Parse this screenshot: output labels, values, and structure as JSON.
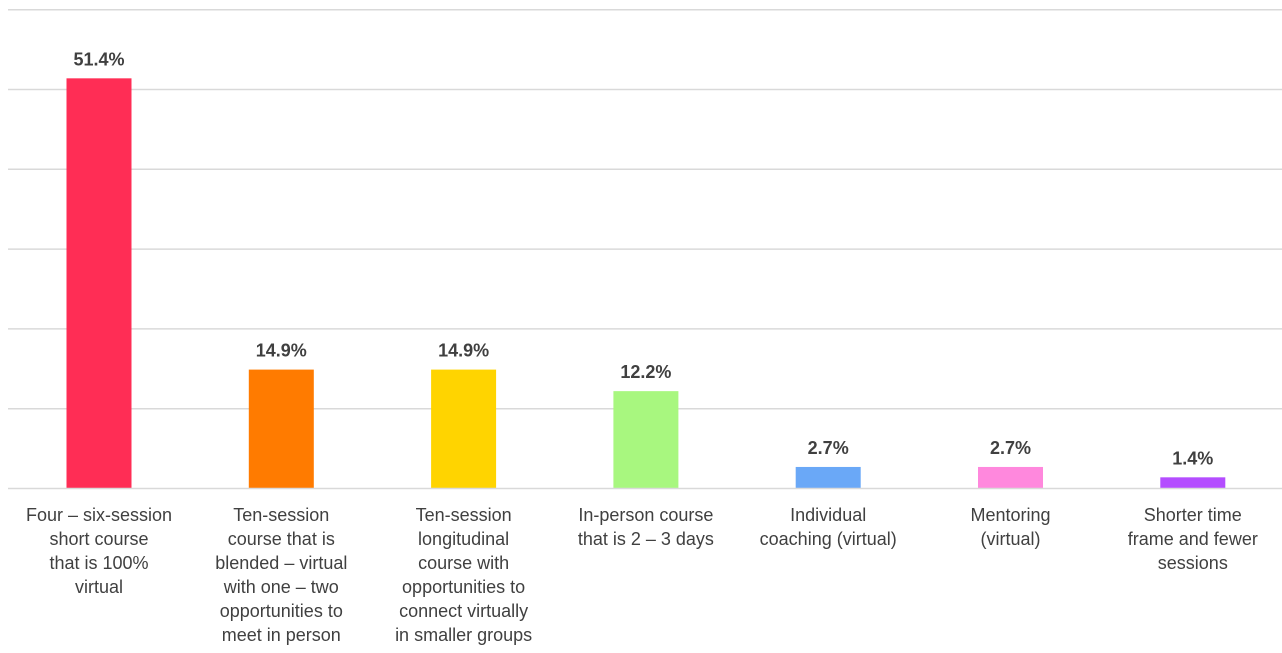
{
  "chart_data": {
    "type": "bar",
    "categories": [
      [
        "Four – six-session",
        "short course",
        "that is 100%",
        "virtual"
      ],
      [
        "Ten-session",
        "course that is",
        "blended – virtual",
        "with one – two",
        "opportunities to",
        "meet in person"
      ],
      [
        "Ten-session",
        "longitudinal",
        "course with",
        "opportunities to",
        "connect virtually",
        "in smaller groups"
      ],
      [
        "In-person course",
        "that is 2 – 3 days"
      ],
      [
        "Individual",
        "coaching (virtual)"
      ],
      [
        "Mentoring",
        "(virtual)"
      ],
      [
        "Shorter time",
        "frame and fewer",
        "sessions"
      ]
    ],
    "values": [
      51.4,
      14.9,
      14.9,
      12.2,
      2.7,
      2.7,
      1.4
    ],
    "value_labels": [
      "51.4%",
      "14.9%",
      "14.9%",
      "12.2%",
      "2.7%",
      "2.7%",
      "1.4%"
    ],
    "colors": [
      "#ff2d55",
      "#ff7b00",
      "#ffd400",
      "#a8f77f",
      "#6aa8f7",
      "#ff88dd",
      "#b44dff"
    ],
    "ylim": [
      0,
      60
    ],
    "grid": true,
    "title": "",
    "xlabel": "",
    "ylabel": ""
  }
}
